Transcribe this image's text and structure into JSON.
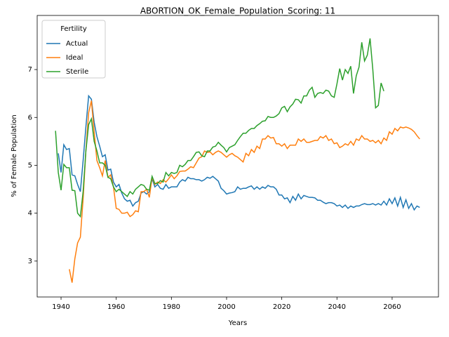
{
  "chart_data": {
    "type": "line",
    "title": "ABORTION_OK_Female_Population_Scoring: 11",
    "xlabel": "Years",
    "ylabel": "% of Female Population",
    "legend_title": "Fertility",
    "legend": "upper left",
    "xlim": [
      1931.35,
      2076.8
    ],
    "ylim": [
      2.25,
      8.13
    ],
    "xticks": [
      1940,
      1960,
      1980,
      2000,
      2020,
      2040,
      2060
    ],
    "yticks": [
      3,
      4,
      5,
      6,
      7
    ],
    "x": [
      1938,
      1939,
      1940,
      1941,
      1942,
      1943,
      1944,
      1945,
      1946,
      1947,
      1948,
      1949,
      1950,
      1951,
      1952,
      1953,
      1954,
      1955,
      1956,
      1957,
      1958,
      1959,
      1960,
      1961,
      1962,
      1963,
      1964,
      1965,
      1966,
      1967,
      1968,
      1969,
      1970,
      1971,
      1972,
      1973,
      1974,
      1975,
      1976,
      1977,
      1978,
      1979,
      1980,
      1981,
      1982,
      1983,
      1984,
      1985,
      1986,
      1987,
      1988,
      1989,
      1990,
      1991,
      1992,
      1993,
      1994,
      1995,
      1996,
      1997,
      1998,
      1999,
      2000,
      2001,
      2002,
      2003,
      2004,
      2005,
      2006,
      2007,
      2008,
      2009,
      2010,
      2011,
      2012,
      2013,
      2014,
      2015,
      2016,
      2017,
      2018,
      2019,
      2020,
      2021,
      2022,
      2023,
      2024,
      2025,
      2026,
      2027,
      2028,
      2029,
      2030,
      2031,
      2032,
      2033,
      2034,
      2035,
      2036,
      2037,
      2038,
      2039,
      2040,
      2041,
      2042,
      2043,
      2044,
      2045,
      2046,
      2047,
      2048,
      2049,
      2050,
      2051,
      2052,
      2053,
      2054,
      2055,
      2056,
      2057,
      2058,
      2059,
      2060,
      2061,
      2062,
      2063,
      2064,
      2065,
      2066,
      2067,
      2068,
      2069,
      2070
    ],
    "series": [
      {
        "name": "Actual",
        "color": "#1f77b4",
        "values": [
          null,
          5.25,
          4.85,
          5.43,
          5.33,
          5.35,
          4.8,
          4.78,
          4.6,
          4.45,
          5.1,
          5.8,
          6.45,
          6.38,
          5.9,
          5.6,
          5.4,
          5.18,
          5.22,
          4.9,
          4.92,
          4.65,
          4.55,
          4.6,
          4.42,
          4.3,
          4.25,
          4.27,
          4.15,
          4.22,
          4.25,
          4.42,
          4.45,
          4.4,
          4.45,
          4.72,
          4.55,
          4.6,
          4.52,
          4.5,
          4.6,
          4.52,
          4.55,
          4.55,
          4.55,
          4.65,
          4.7,
          4.67,
          4.75,
          4.72,
          4.72,
          4.7,
          4.7,
          4.67,
          4.7,
          4.75,
          4.73,
          4.77,
          4.72,
          4.67,
          4.52,
          4.47,
          4.4,
          4.42,
          4.43,
          4.45,
          4.55,
          4.5,
          4.52,
          4.52,
          4.55,
          4.57,
          4.5,
          4.55,
          4.5,
          4.55,
          4.52,
          4.58,
          4.55,
          4.55,
          4.5,
          4.38,
          4.38,
          4.3,
          4.32,
          4.22,
          4.35,
          4.27,
          4.4,
          4.3,
          4.37,
          4.35,
          4.33,
          4.33,
          4.32,
          4.27,
          4.27,
          4.23,
          4.2,
          4.22,
          4.22,
          4.2,
          4.15,
          4.17,
          4.12,
          4.17,
          4.1,
          4.15,
          4.12,
          4.15,
          4.15,
          4.18,
          4.2,
          4.18,
          4.18,
          4.2,
          4.17,
          4.2,
          4.17,
          4.25,
          4.17,
          4.3,
          4.2,
          4.32,
          4.15,
          4.33,
          4.12,
          4.28,
          4.1,
          4.2,
          4.07,
          4.15,
          4.12
        ]
      },
      {
        "name": "Ideal",
        "color": "#ff7f0e",
        "values": [
          null,
          null,
          null,
          null,
          null,
          2.83,
          2.55,
          3.05,
          3.38,
          3.5,
          4.3,
          5.3,
          6.1,
          6.35,
          5.7,
          5.1,
          4.95,
          4.78,
          5.1,
          4.75,
          4.8,
          4.55,
          4.1,
          4.08,
          4.0,
          4.0,
          4.02,
          3.93,
          3.97,
          4.05,
          4.03,
          4.45,
          4.45,
          4.5,
          4.33,
          4.75,
          4.6,
          4.65,
          4.62,
          4.7,
          4.65,
          4.72,
          4.8,
          4.72,
          4.78,
          4.87,
          4.88,
          4.88,
          4.92,
          4.97,
          4.95,
          5.05,
          5.15,
          5.18,
          5.3,
          5.27,
          5.28,
          5.22,
          5.27,
          5.3,
          5.27,
          5.22,
          5.17,
          5.22,
          5.25,
          5.2,
          5.17,
          5.12,
          5.07,
          5.25,
          5.2,
          5.33,
          5.27,
          5.4,
          5.35,
          5.55,
          5.55,
          5.62,
          5.57,
          5.58,
          5.45,
          5.45,
          5.4,
          5.45,
          5.35,
          5.42,
          5.42,
          5.42,
          5.55,
          5.5,
          5.55,
          5.48,
          5.48,
          5.5,
          5.52,
          5.52,
          5.6,
          5.57,
          5.62,
          5.52,
          5.55,
          5.45,
          5.47,
          5.37,
          5.4,
          5.45,
          5.42,
          5.5,
          5.42,
          5.55,
          5.52,
          5.62,
          5.55,
          5.55,
          5.5,
          5.52,
          5.47,
          5.52,
          5.45,
          5.57,
          5.52,
          5.7,
          5.65,
          5.77,
          5.72,
          5.8,
          5.78,
          5.8,
          5.78,
          5.75,
          5.7,
          5.62,
          5.55
        ]
      },
      {
        "name": "Sterile",
        "color": "#2ca02c",
        "values": [
          5.72,
          4.85,
          4.48,
          5.02,
          4.95,
          4.95,
          4.48,
          4.47,
          4.0,
          3.93,
          4.45,
          5.3,
          5.85,
          5.97,
          5.5,
          5.3,
          5.05,
          5.05,
          5.0,
          4.75,
          4.72,
          4.55,
          4.45,
          4.5,
          4.45,
          4.4,
          4.35,
          4.45,
          4.4,
          4.5,
          4.55,
          4.6,
          4.58,
          4.5,
          4.48,
          4.77,
          4.62,
          4.62,
          4.68,
          4.65,
          4.85,
          4.78,
          4.85,
          4.83,
          4.85,
          5.0,
          4.97,
          5.02,
          5.1,
          5.1,
          5.18,
          5.27,
          5.28,
          5.2,
          5.18,
          5.3,
          5.3,
          5.38,
          5.4,
          5.48,
          5.42,
          5.37,
          5.28,
          5.37,
          5.4,
          5.43,
          5.52,
          5.6,
          5.67,
          5.67,
          5.73,
          5.77,
          5.77,
          5.83,
          5.87,
          5.92,
          5.93,
          6.02,
          6.0,
          6.0,
          6.03,
          6.08,
          6.2,
          6.23,
          6.12,
          6.22,
          6.28,
          6.38,
          6.37,
          6.3,
          6.45,
          6.45,
          6.57,
          6.63,
          6.42,
          6.5,
          6.52,
          6.5,
          6.57,
          6.55,
          6.45,
          6.42,
          6.7,
          7.02,
          6.78,
          7.0,
          6.92,
          7.07,
          6.5,
          6.87,
          7.05,
          7.57,
          7.18,
          7.3,
          7.65,
          7.0,
          6.2,
          6.25,
          6.72,
          6.55,
          null,
          null,
          null,
          null,
          null,
          null,
          null,
          null,
          null,
          null,
          null,
          null,
          null
        ]
      }
    ]
  }
}
